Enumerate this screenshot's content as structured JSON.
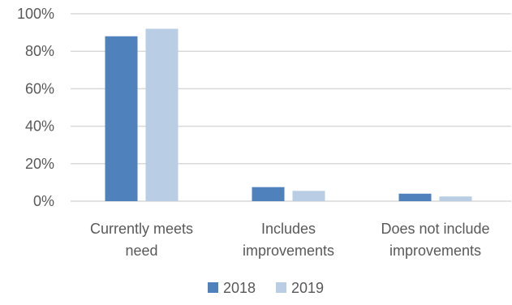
{
  "chart_data": {
    "type": "bar",
    "title": "",
    "xlabel": "",
    "ylabel": "",
    "categories": [
      [
        "Currently meets",
        "need"
      ],
      [
        "Includes",
        "improvements"
      ],
      [
        "Does not include",
        "improvements"
      ]
    ],
    "series": [
      {
        "name": "2018",
        "color": "#4f81bd",
        "values": [
          88,
          7.5,
          4
        ]
      },
      {
        "name": "2019",
        "color": "#b9cde5",
        "values": [
          92,
          5.5,
          2.5
        ]
      }
    ],
    "ylim": [
      0,
      100
    ],
    "yticks": [
      {
        "value": 0,
        "label": "0%"
      },
      {
        "value": 20,
        "label": "20%"
      },
      {
        "value": 40,
        "label": "40%"
      },
      {
        "value": 60,
        "label": "60%"
      },
      {
        "value": 80,
        "label": "80%"
      },
      {
        "value": 100,
        "label": "100%"
      }
    ],
    "grid": true,
    "legend": "bottom-center",
    "gridColor": "#d9d9d9",
    "textColor": "#595959"
  }
}
